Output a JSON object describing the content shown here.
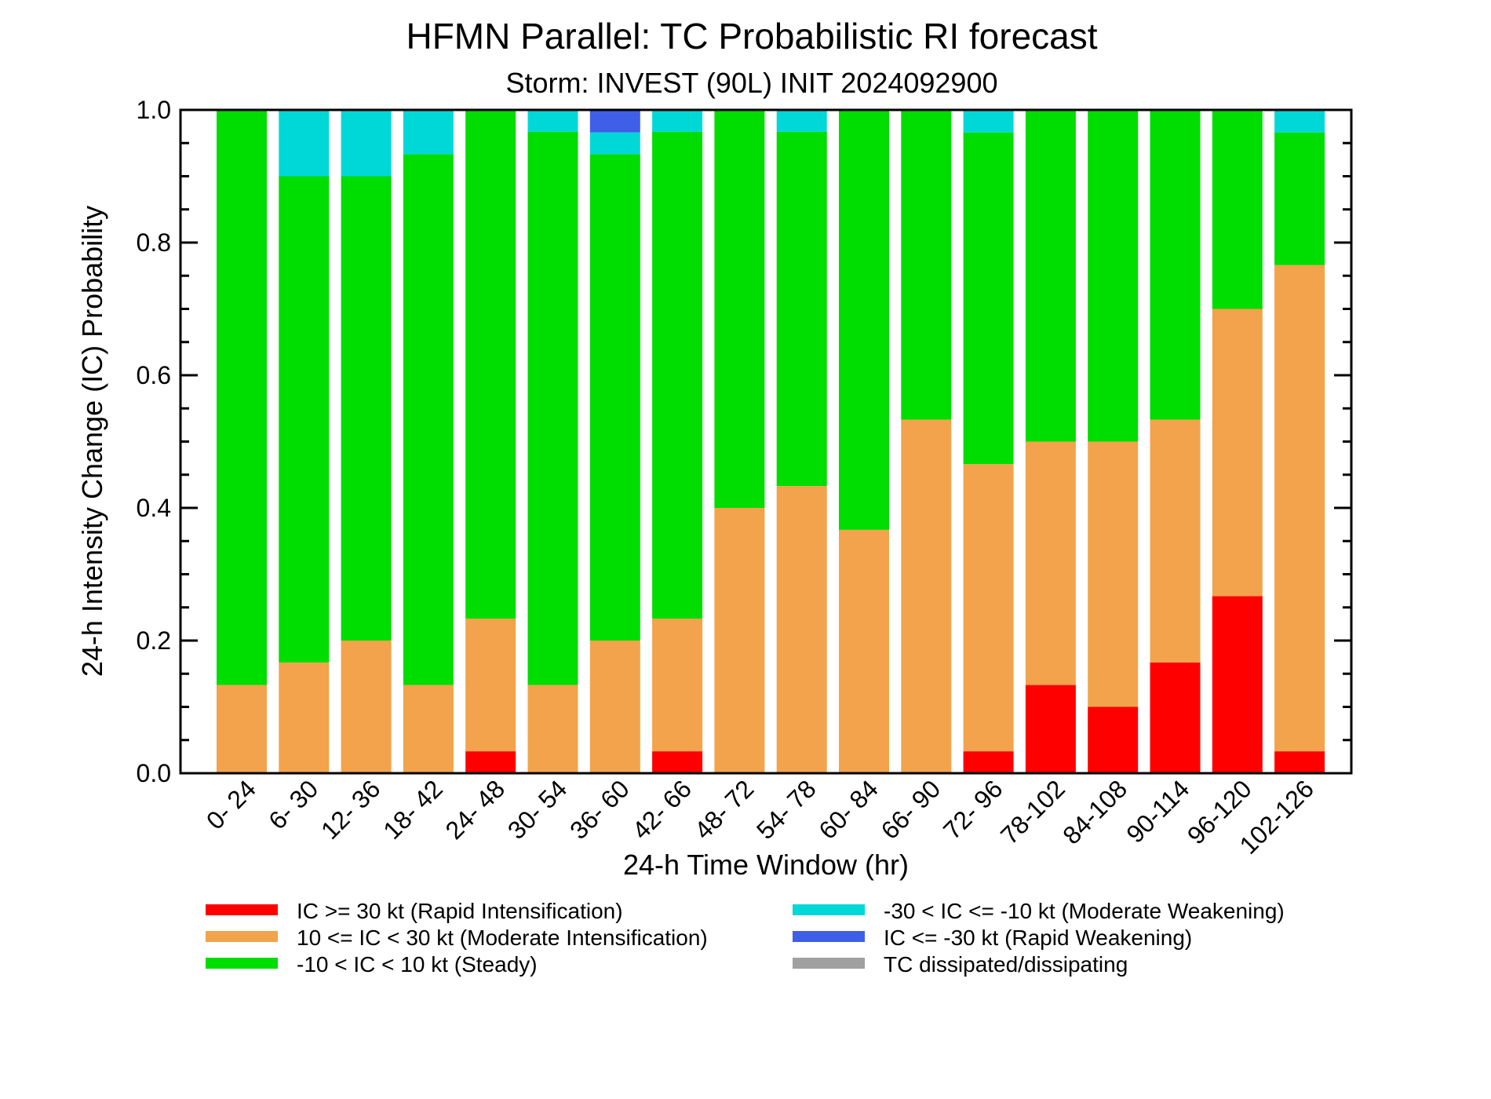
{
  "chart_data": {
    "type": "bar",
    "stacked": true,
    "title": "HFMN Parallel: TC Probabilistic RI forecast",
    "subtitle": "Storm: INVEST (90L) INIT 2024092900",
    "xlabel": "24-h Time Window (hr)",
    "ylabel": "24-h Intensity Change (IC) Probability",
    "ylim": [
      0,
      1
    ],
    "yticks": [
      "0.0",
      "0.2",
      "0.4",
      "0.6",
      "0.8",
      "1.0"
    ],
    "categories": [
      "0- 24",
      "6- 30",
      "12- 36",
      "18- 42",
      "24- 48",
      "30- 54",
      "36- 60",
      "42- 66",
      "48- 72",
      "54- 78",
      "60- 84",
      "66- 90",
      "72- 96",
      "78-102",
      "84-108",
      "90-114",
      "96-120",
      "102-126"
    ],
    "series": [
      {
        "name": "IC >= 30 kt (Rapid Intensification)",
        "color": "#ff0000",
        "values": [
          0,
          0,
          0,
          0,
          0.033,
          0,
          0,
          0.033,
          0,
          0,
          0,
          0,
          0.033,
          0.133,
          0.1,
          0.167,
          0.267,
          0.033
        ]
      },
      {
        "name": "10 <= IC < 30 kt (Moderate Intensification)",
        "color": "#f2a34b",
        "values": [
          0.133,
          0.167,
          0.2,
          0.133,
          0.2,
          0.133,
          0.2,
          0.2,
          0.4,
          0.433,
          0.367,
          0.533,
          0.433,
          0.367,
          0.4,
          0.366,
          0.433,
          0.733
        ]
      },
      {
        "name": "-10 < IC < 10 kt (Steady)",
        "color": "#00dd00",
        "values": [
          0.867,
          0.733,
          0.7,
          0.8,
          0.767,
          0.834,
          0.733,
          0.734,
          0.6,
          0.534,
          0.633,
          0.467,
          0.5,
          0.5,
          0.5,
          0.467,
          0.3,
          0.2
        ]
      },
      {
        "name": "-30 < IC <= -10 kt (Moderate Weakening)",
        "color": "#00d8d8",
        "values": [
          0,
          0.1,
          0.1,
          0.067,
          0,
          0.033,
          0.033,
          0.033,
          0,
          0.033,
          0,
          0,
          0.034,
          0,
          0,
          0,
          0,
          0.034
        ]
      },
      {
        "name": "IC <= -30 kt (Rapid Weakening)",
        "color": "#3f5fe8",
        "values": [
          0,
          0,
          0,
          0,
          0,
          0,
          0.034,
          0,
          0,
          0,
          0,
          0,
          0,
          0,
          0,
          0,
          0,
          0
        ]
      },
      {
        "name": "TC dissipated/dissipating",
        "color": "#a0a0a0",
        "values": [
          0,
          0,
          0,
          0,
          0,
          0,
          0,
          0,
          0,
          0,
          0,
          0,
          0,
          0,
          0,
          0,
          0,
          0
        ]
      }
    ],
    "legend_position": "bottom",
    "grid": false
  }
}
